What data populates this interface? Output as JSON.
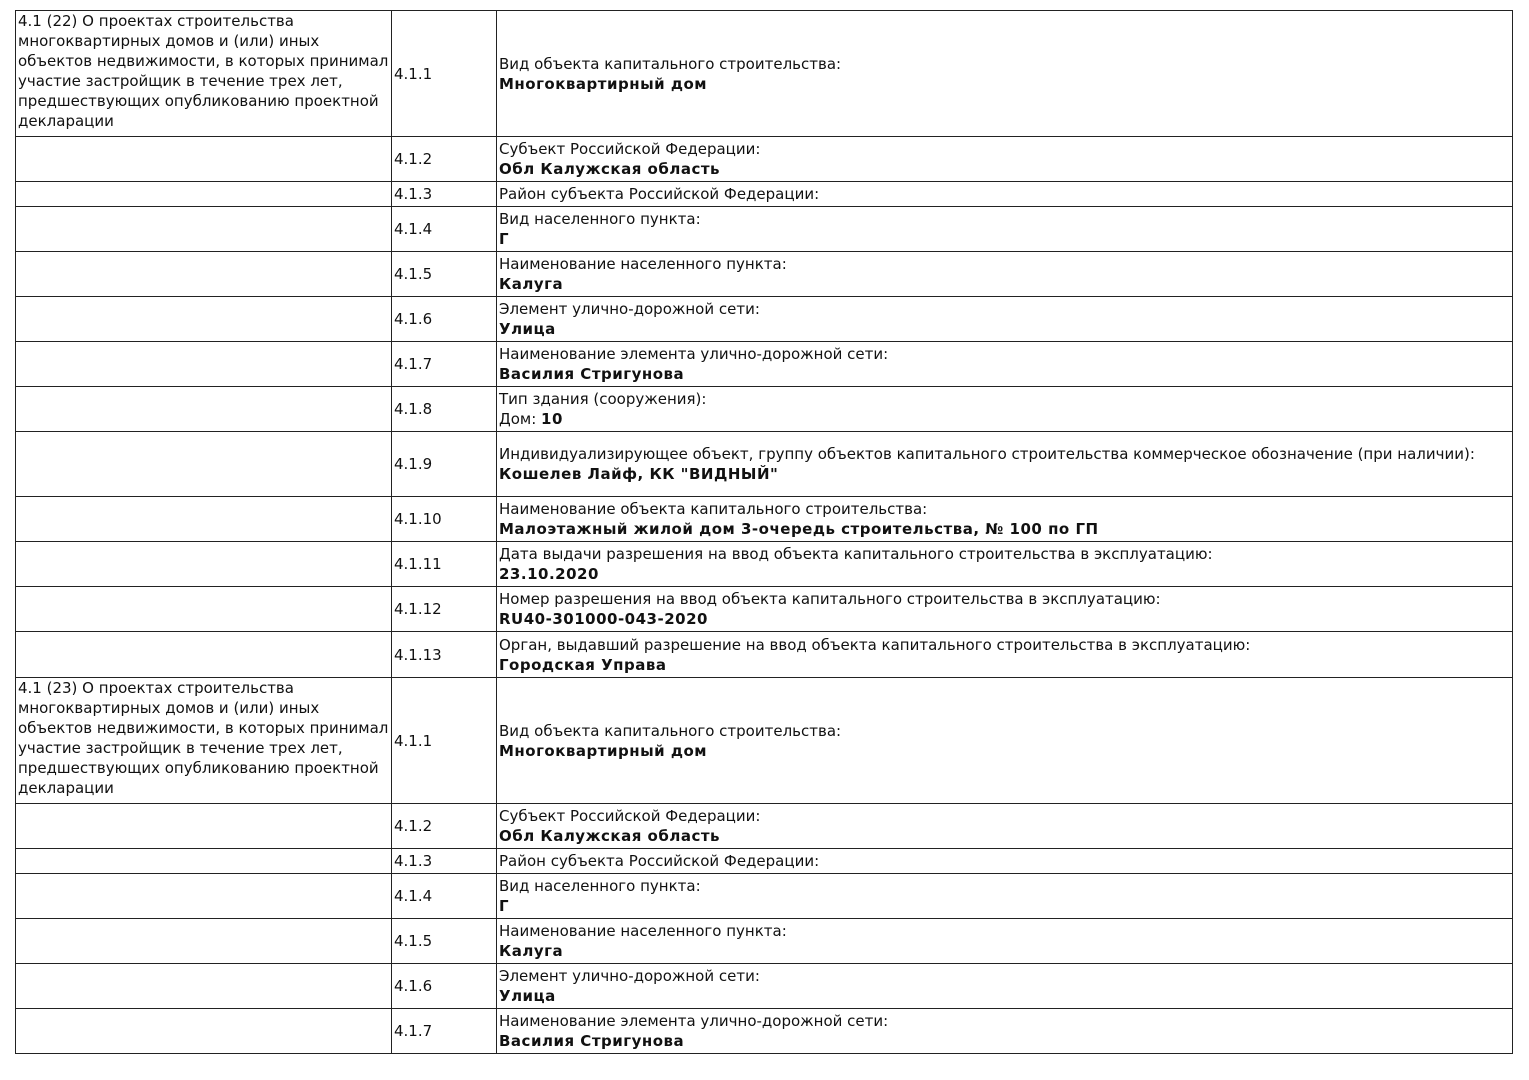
{
  "table": {
    "rows": [
      {
        "section": "4.1 (22) О проектах строительства многоквартирных домов и (или) иных объектов недвижимости, в которых принимал участие застройщик в течение трех лет, предшествующих опубликованию проектной декларации",
        "code": "4.1.1",
        "label": "Вид объекта капитального строительства:",
        "value": "Многоквартирный дом"
      },
      {
        "code": "4.1.2",
        "label": "Субъект Российской Федерации:",
        "value": "Обл Калужская область"
      },
      {
        "code": "4.1.3",
        "label": "Район субъекта Российской Федерации:"
      },
      {
        "code": "4.1.4",
        "label": "Вид населенного пункта:",
        "value": "Г"
      },
      {
        "code": "4.1.5",
        "label": "Наименование населенного пункта:",
        "value": "Калуга"
      },
      {
        "code": "4.1.6",
        "label": "Элемент улично-дорожной сети:",
        "value": "Улица"
      },
      {
        "code": "4.1.7",
        "label": "Наименование элемента улично-дорожной сети:",
        "value": "Василия Стригунова"
      },
      {
        "code": "4.1.8",
        "label": "Тип здания (сооружения):",
        "value_prefix": "Дом:",
        "value": "10"
      },
      {
        "code": "4.1.9",
        "label": "Индивидуализирующее объект, группу объектов капитального строительства коммерческое обозначение (при наличии):",
        "value": "Кошелев Лайф, КК \"ВИДНЫЙ\""
      },
      {
        "code": "4.1.10",
        "label": "Наименование объекта капитального строительства:",
        "value": "Малоэтажный жилой дом 3-очередь строительства, № 100 по ГП"
      },
      {
        "code": "4.1.11",
        "label": "Дата выдачи разрешения на ввод объекта капитального строительства в эксплуатацию:",
        "value": "23.10.2020"
      },
      {
        "code": "4.1.12",
        "label": "Номер разрешения на ввод объекта капитального строительства в эксплуатацию:",
        "value": "RU40-301000-043-2020"
      },
      {
        "code": "4.1.13",
        "label": "Орган, выдавший разрешение на ввод объекта капитального строительства в эксплуатацию:",
        "value": "Городская Управа"
      },
      {
        "section": "4.1 (23) О проектах строительства многоквартирных домов и (или) иных объектов недвижимости, в которых принимал участие застройщик в течение трех лет, предшествующих опубликованию проектной декларации",
        "code": "4.1.1",
        "label": "Вид объекта капитального строительства:",
        "value": "Многоквартирный дом"
      },
      {
        "code": "4.1.2",
        "label": "Субъект Российской Федерации:",
        "value": "Обл Калужская область"
      },
      {
        "code": "4.1.3",
        "label": "Район субъекта Российской Федерации:"
      },
      {
        "code": "4.1.4",
        "label": "Вид населенного пункта:",
        "value": "Г"
      },
      {
        "code": "4.1.5",
        "label": "Наименование населенного пункта:",
        "value": "Калуга"
      },
      {
        "code": "4.1.6",
        "label": "Элемент улично-дорожной сети:",
        "value": "Улица"
      },
      {
        "code": "4.1.7",
        "label": "Наименование элемента улично-дорожной сети:",
        "value": "Василия Стригунова"
      }
    ]
  }
}
